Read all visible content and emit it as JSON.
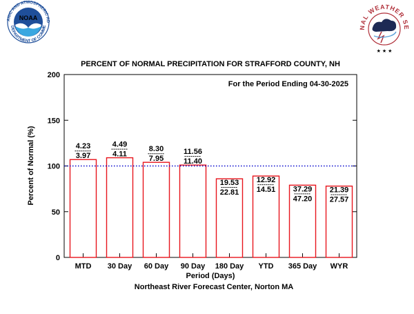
{
  "logos": {
    "noaa": {
      "word": "NOAA",
      "ring_top": "NATIONAL OCEANIC AND ATMOSPHERIC ADMINISTRATION",
      "ring_bottom": "U.S. DEPARTMENT OF COMMERCE",
      "color": "#1f4f9a"
    },
    "nws": {
      "ring_text": "NATIONAL WEATHER SERVICE",
      "color": "#b0303a"
    }
  },
  "chart_data": {
    "type": "bar",
    "title": "PERCENT OF NORMAL PRECIPITATION FOR STRAFFORD COUNTY, NH",
    "subtitle": "For the Period Ending 04-30-2025",
    "xlabel": "Period (Days)",
    "ylabel": "Percent of Normal (%)",
    "credit": "Northeast River Forecast Center, Norton MA",
    "ylim": [
      0,
      200
    ],
    "yticks": [
      0,
      50,
      100,
      150,
      200
    ],
    "reference_line": 100,
    "categories": [
      "MTD",
      "30 Day",
      "60 Day",
      "90 Day",
      "180 Day",
      "YTD",
      "365 Day",
      "WYR"
    ],
    "values": [
      107,
      109,
      104,
      101,
      86,
      89,
      79,
      78
    ],
    "observed": [
      "4.23",
      "4.49",
      "8.30",
      "11.56",
      "19.53",
      "12.92",
      "37.29",
      "21.39"
    ],
    "normal": [
      "3.97",
      "4.11",
      "7.95",
      "11.40",
      "22.81",
      "14.51",
      "47.20",
      "27.57"
    ],
    "bar_color": "#e8141c",
    "reference_color": "#0000cc",
    "grid": false
  }
}
